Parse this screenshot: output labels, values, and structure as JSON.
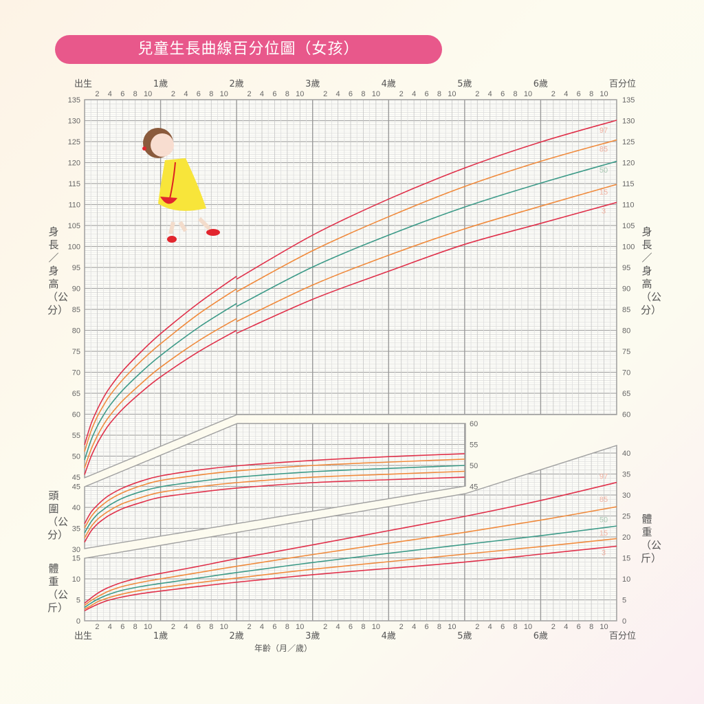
{
  "title": "兒童生長曲線百分位圖（女孩）",
  "labels": {
    "height_axis": "身長／身高（公分）",
    "head_axis": "頭圍（公分）",
    "weight_axis": "體重（公斤）",
    "x_axis": "年齡（月／歲）",
    "percentile_header": "百分位"
  },
  "colors": {
    "p97": "#e0304a",
    "p85": "#f08a3c",
    "p50": "#3c9a88",
    "p15": "#f08a3c",
    "p3": "#e0304a",
    "title_bg": "#e8588b"
  },
  "chart_data": [
    {
      "type": "line",
      "panel": "height",
      "xlabel": "年齡（月／歲）",
      "ylabel": "身長／身高（公分）",
      "xlim_months": [
        0,
        84
      ],
      "ylim": [
        45,
        135
      ],
      "year_labels": [
        "出生",
        "1歲",
        "2歲",
        "3歲",
        "4歲",
        "5歲",
        "6歲",
        "百分位"
      ],
      "month_ticks": [
        "2",
        "4",
        "6",
        "8",
        "10"
      ],
      "segments": [
        {
          "x_months": [
            0,
            1,
            2,
            3,
            4,
            6,
            9,
            12,
            18,
            24
          ],
          "series": [
            {
              "name": "97",
              "values": [
                52.7,
                57.6,
                61.1,
                64.0,
                66.4,
                70.3,
                75.0,
                79.2,
                86.5,
                92.9
              ]
            },
            {
              "name": "85",
              "values": [
                51.1,
                55.9,
                59.4,
                62.1,
                64.5,
                68.2,
                72.8,
                76.8,
                83.9,
                89.9
              ]
            },
            {
              "name": "50",
              "values": [
                49.1,
                53.7,
                57.1,
                59.8,
                62.1,
                65.7,
                70.1,
                74.0,
                80.7,
                86.4
              ]
            },
            {
              "name": "15",
              "values": [
                47.2,
                51.5,
                54.8,
                57.5,
                59.7,
                63.2,
                67.4,
                71.2,
                77.5,
                82.8
              ]
            },
            {
              "name": "3",
              "values": [
                45.6,
                49.8,
                53.0,
                55.6,
                57.8,
                61.2,
                65.3,
                68.9,
                74.9,
                80.0
              ]
            }
          ]
        },
        {
          "x_months": [
            24,
            36,
            48,
            60,
            72,
            84
          ],
          "series": [
            {
              "name": "97",
              "values": [
                92.2,
                102.7,
                111.3,
                118.7,
                124.9,
                130.1
              ]
            },
            {
              "name": "85",
              "values": [
                89.2,
                99.0,
                107.1,
                114.3,
                120.3,
                125.4
              ]
            },
            {
              "name": "50",
              "values": [
                85.7,
                95.1,
                102.7,
                109.4,
                115.1,
                120.3
              ]
            },
            {
              "name": "15",
              "values": [
                82.1,
                90.8,
                97.9,
                104.2,
                109.6,
                114.8
              ]
            },
            {
              "name": "3",
              "values": [
                79.3,
                87.4,
                94.1,
                100.5,
                105.5,
                110.5
              ]
            }
          ]
        }
      ]
    },
    {
      "type": "line",
      "panel": "head_circumference",
      "ylabel": "頭圍（公分）",
      "xlim_months": [
        0,
        60
      ],
      "ylim": [
        30,
        60
      ],
      "segments": [
        {
          "x_months": [
            0,
            1,
            2,
            3,
            4,
            6,
            9,
            12,
            18,
            24,
            36,
            48,
            60
          ],
          "series": [
            {
              "name": "97",
              "values": [
                36.1,
                38.8,
                40.5,
                41.9,
                43.0,
                44.6,
                46.3,
                47.5,
                48.9,
                49.9,
                51.2,
                52.1,
                52.8
              ]
            },
            {
              "name": "85",
              "values": [
                35.1,
                37.7,
                39.5,
                40.8,
                41.9,
                43.5,
                45.2,
                46.4,
                47.7,
                48.7,
                50.0,
                50.8,
                51.5
              ]
            },
            {
              "name": "50",
              "values": [
                33.9,
                36.5,
                38.3,
                39.5,
                40.6,
                42.2,
                43.8,
                44.9,
                46.2,
                47.2,
                48.5,
                49.3,
                50.0
              ]
            },
            {
              "name": "15",
              "values": [
                32.7,
                35.3,
                37.1,
                38.3,
                39.3,
                40.9,
                42.4,
                43.6,
                44.9,
                45.9,
                47.2,
                47.9,
                48.6
              ]
            },
            {
              "name": "3",
              "values": [
                31.7,
                34.3,
                36.0,
                37.2,
                38.2,
                39.7,
                41.2,
                42.4,
                43.6,
                44.6,
                45.9,
                46.6,
                47.2
              ]
            }
          ]
        }
      ]
    },
    {
      "type": "line",
      "panel": "weight",
      "ylabel": "體重（公斤）",
      "xlim_months": [
        0,
        84
      ],
      "ylim": [
        0,
        40
      ],
      "segments": [
        {
          "x_months": [
            0,
            1,
            2,
            3,
            4,
            6,
            9,
            12,
            18,
            24,
            36,
            48,
            60,
            72,
            84
          ],
          "series": [
            {
              "name": "97",
              "values": [
                4.2,
                5.4,
                6.5,
                7.4,
                8.1,
                9.2,
                10.4,
                11.3,
                13.0,
                14.8,
                18.1,
                21.5,
                24.9,
                28.7,
                33.0
              ]
            },
            {
              "name": "85",
              "values": [
                3.7,
                4.8,
                5.7,
                6.5,
                7.2,
                8.2,
                9.2,
                10.0,
                11.5,
                13.0,
                15.8,
                18.5,
                21.1,
                24.0,
                27.2
              ]
            },
            {
              "name": "50",
              "values": [
                3.2,
                4.2,
                5.1,
                5.8,
                6.4,
                7.3,
                8.2,
                8.9,
                10.2,
                11.5,
                13.9,
                16.1,
                18.2,
                20.3,
                22.6
              ]
            },
            {
              "name": "15",
              "values": [
                2.8,
                3.6,
                4.5,
                5.1,
                5.6,
                6.4,
                7.3,
                7.9,
                9.1,
                10.2,
                12.3,
                14.1,
                15.9,
                17.7,
                19.6
              ]
            },
            {
              "name": "3",
              "values": [
                2.4,
                3.2,
                3.9,
                4.5,
                5.0,
                5.7,
                6.5,
                7.1,
                8.2,
                9.2,
                11.0,
                12.5,
                14.0,
                15.9,
                17.8
              ]
            }
          ]
        }
      ]
    }
  ]
}
